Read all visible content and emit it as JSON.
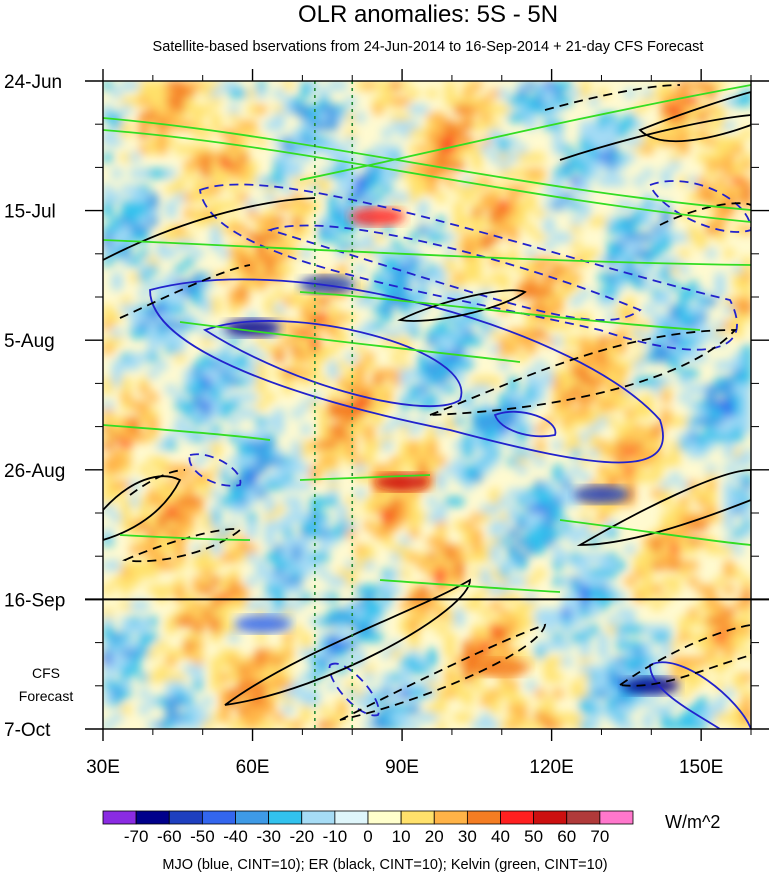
{
  "chart_data": {
    "type": "heatmap",
    "title": "OLR anomalies: 5S - 5N",
    "subtitle": "Satellite-based bservations from 24-Jun-2014 to 16-Sep-2014 + 21-day CFS Forecast",
    "x_ticks": [
      "30E",
      "60E",
      "90E",
      "120E",
      "150E"
    ],
    "x_tick_values": [
      30,
      60,
      90,
      120,
      150
    ],
    "xlim": [
      30,
      160
    ],
    "y_ticks": [
      "24-Jun",
      "15-Jul",
      "5-Aug",
      "26-Aug",
      "16-Sep",
      "7-Oct"
    ],
    "y_tick_days": [
      0,
      21,
      42,
      63,
      84,
      105
    ],
    "ylim_days": [
      0,
      105
    ],
    "forecast_start_day": 84,
    "forecast_label": "CFS\nForecast",
    "reference_longitudes": [
      72.5,
      80
    ],
    "colorbar": {
      "levels": [
        "-70",
        "-60",
        "-50",
        "-40",
        "-30",
        "-20",
        "-10",
        "0",
        "10",
        "20",
        "30",
        "40",
        "50",
        "60",
        "70"
      ],
      "colors": [
        "#8a2be2",
        "#00008b",
        "#1e3fbf",
        "#3366ee",
        "#3e9ae6",
        "#32c2ee",
        "#a6dcf5",
        "#dff6fb",
        "#ffffcc",
        "#ffe16b",
        "#ffb347",
        "#f47d23",
        "#ff2020",
        "#cc1010",
        "#b03a3a",
        "#ff77cc"
      ],
      "units": "W/m^2"
    },
    "contours": {
      "MJO": {
        "color": "#2222cc",
        "cint": 10
      },
      "ER": {
        "color": "#000000",
        "cint": 10
      },
      "Kelvin": {
        "color": "#33dd22",
        "cint": 10
      }
    },
    "footnote": "MJO (blue, CINT=10); ER (black, CINT=10); Kelvin (green, CINT=10)"
  }
}
